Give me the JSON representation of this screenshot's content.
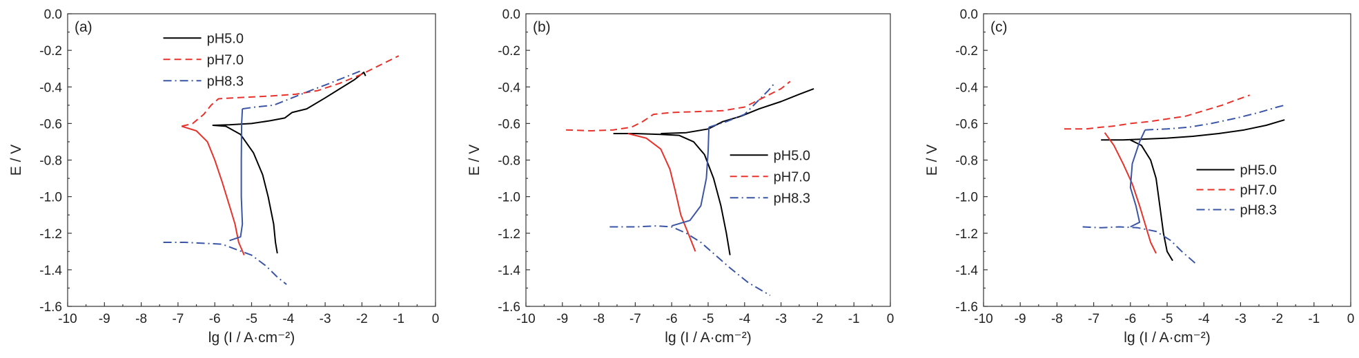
{
  "chart_data": [
    {
      "type": "line",
      "panel_label": "(a)",
      "xlabel": "lg (I / A·cm⁻²)",
      "ylabel": "E / V",
      "xlim": [
        -10,
        0
      ],
      "ylim": [
        -1.6,
        0.0
      ],
      "xticks": [
        "-10",
        "-9",
        "-8",
        "-7",
        "-6",
        "-5",
        "-4",
        "-3",
        "-2",
        "-1",
        "0"
      ],
      "yticks": [
        "0.0",
        "-0.2",
        "-0.4",
        "-0.6",
        "-0.8",
        "-1.0",
        "-1.2",
        "-1.4",
        "-1.6"
      ],
      "legend_position": "top-left",
      "series": [
        {
          "name": "pH5.0",
          "color": "#000000",
          "dash": "solid",
          "points": [
            [
              -4.3,
              -1.31
            ],
            [
              -4.35,
              -1.25
            ],
            [
              -4.4,
              -1.15
            ],
            [
              -4.55,
              -1.0
            ],
            [
              -4.7,
              -0.88
            ],
            [
              -4.95,
              -0.76
            ],
            [
              -5.3,
              -0.66
            ],
            [
              -5.7,
              -0.615
            ],
            [
              -6.05,
              -0.61
            ],
            [
              -5.6,
              -0.607
            ],
            [
              -5.0,
              -0.6
            ],
            [
              -4.5,
              -0.585
            ],
            [
              -4.1,
              -0.57
            ],
            [
              -3.9,
              -0.54
            ],
            [
              -3.5,
              -0.52
            ],
            [
              -3.0,
              -0.46
            ],
            [
              -2.6,
              -0.41
            ],
            [
              -2.2,
              -0.36
            ],
            [
              -1.95,
              -0.32
            ],
            [
              -1.9,
              -0.34
            ]
          ]
        },
        {
          "name": "pH7.0",
          "color": "#e8312a",
          "dash": "dashed",
          "points": [
            [
              -6.9,
              -0.615
            ],
            [
              -6.6,
              -0.6
            ],
            [
              -6.3,
              -0.55
            ],
            [
              -6.1,
              -0.5
            ],
            [
              -5.9,
              -0.465
            ],
            [
              -5.5,
              -0.46
            ],
            [
              -5.0,
              -0.455
            ],
            [
              -4.5,
              -0.45
            ],
            [
              -3.8,
              -0.44
            ],
            [
              -3.2,
              -0.42
            ],
            [
              -2.6,
              -0.38
            ],
            [
              -2.0,
              -0.33
            ],
            [
              -1.5,
              -0.28
            ],
            [
              -1.0,
              -0.23
            ]
          ]
        },
        {
          "name": "",
          "color": "#e8312a",
          "dash": "solid",
          "points": [
            [
              -6.9,
              -0.615
            ],
            [
              -6.5,
              -0.64
            ],
            [
              -6.2,
              -0.7
            ],
            [
              -6.0,
              -0.8
            ],
            [
              -5.8,
              -0.92
            ],
            [
              -5.6,
              -1.05
            ],
            [
              -5.45,
              -1.15
            ],
            [
              -5.35,
              -1.25
            ],
            [
              -5.2,
              -1.32
            ]
          ]
        },
        {
          "name": "pH8.3",
          "color": "#3a54a6",
          "dash": "dashdot",
          "points": [
            [
              -5.25,
              -0.52
            ],
            [
              -4.9,
              -0.51
            ],
            [
              -4.4,
              -0.5
            ],
            [
              -3.9,
              -0.46
            ],
            [
              -3.4,
              -0.42
            ],
            [
              -3.0,
              -0.39
            ],
            [
              -2.5,
              -0.35
            ],
            [
              -2.0,
              -0.31
            ]
          ]
        },
        {
          "name": "",
          "color": "#3a54a6",
          "dash": "solid",
          "points": [
            [
              -5.25,
              -0.52
            ],
            [
              -5.27,
              -0.6
            ],
            [
              -5.28,
              -0.8
            ],
            [
              -5.28,
              -1.0
            ],
            [
              -5.25,
              -1.15
            ],
            [
              -5.3,
              -1.22
            ],
            [
              -5.6,
              -1.24
            ]
          ]
        },
        {
          "name": "",
          "color": "#3a54a6",
          "dash": "dashdot",
          "points": [
            [
              -7.4,
              -1.25
            ],
            [
              -6.8,
              -1.25
            ],
            [
              -6.3,
              -1.255
            ],
            [
              -5.8,
              -1.26
            ],
            [
              -5.4,
              -1.29
            ],
            [
              -5.0,
              -1.32
            ],
            [
              -4.6,
              -1.38
            ],
            [
              -4.3,
              -1.44
            ],
            [
              -4.05,
              -1.48
            ]
          ]
        }
      ]
    },
    {
      "type": "line",
      "panel_label": "(b)",
      "xlabel": "lg (I / A·cm⁻²)",
      "ylabel": "E / V",
      "xlim": [
        -10,
        0
      ],
      "ylim": [
        -1.6,
        0.0
      ],
      "xticks": [
        "-10",
        "-9",
        "-8",
        "-7",
        "-6",
        "-5",
        "-4",
        "-3",
        "-2",
        "-1",
        "0"
      ],
      "yticks": [
        "0.0",
        "-0.2",
        "-0.4",
        "-0.6",
        "-0.8",
        "-1.0",
        "-1.2",
        "-1.4",
        "-1.6"
      ],
      "legend_position": "center-right",
      "series": [
        {
          "name": "pH5.0",
          "color": "#000000",
          "dash": "solid",
          "points": [
            [
              -7.6,
              -0.655
            ],
            [
              -7.0,
              -0.655
            ],
            [
              -6.3,
              -0.66
            ],
            [
              -5.8,
              -0.665
            ],
            [
              -5.4,
              -0.7
            ],
            [
              -5.1,
              -0.77
            ],
            [
              -4.85,
              -0.9
            ],
            [
              -4.65,
              -1.05
            ],
            [
              -4.5,
              -1.2
            ],
            [
              -4.4,
              -1.32
            ]
          ]
        },
        {
          "name": "",
          "color": "#000000",
          "dash": "solid",
          "points": [
            [
              -6.3,
              -0.655
            ],
            [
              -5.6,
              -0.65
            ],
            [
              -5.0,
              -0.63
            ],
            [
              -4.6,
              -0.59
            ],
            [
              -4.1,
              -0.56
            ],
            [
              -3.6,
              -0.52
            ],
            [
              -3.0,
              -0.48
            ],
            [
              -2.5,
              -0.44
            ],
            [
              -2.1,
              -0.41
            ]
          ]
        },
        {
          "name": "pH7.0",
          "color": "#e8312a",
          "dash": "dashed",
          "points": [
            [
              -8.9,
              -0.635
            ],
            [
              -8.2,
              -0.64
            ],
            [
              -7.6,
              -0.635
            ],
            [
              -7.1,
              -0.62
            ],
            [
              -6.8,
              -0.59
            ],
            [
              -6.5,
              -0.55
            ],
            [
              -6.0,
              -0.54
            ],
            [
              -5.3,
              -0.535
            ],
            [
              -4.6,
              -0.53
            ],
            [
              -4.0,
              -0.51
            ],
            [
              -3.5,
              -0.46
            ],
            [
              -3.0,
              -0.41
            ],
            [
              -2.75,
              -0.37
            ]
          ]
        },
        {
          "name": "",
          "color": "#e8312a",
          "dash": "solid",
          "points": [
            [
              -7.2,
              -0.655
            ],
            [
              -6.7,
              -0.68
            ],
            [
              -6.3,
              -0.74
            ],
            [
              -6.05,
              -0.85
            ],
            [
              -5.9,
              -0.97
            ],
            [
              -5.75,
              -1.1
            ],
            [
              -5.55,
              -1.2
            ],
            [
              -5.35,
              -1.3
            ]
          ]
        },
        {
          "name": "pH8.3",
          "color": "#3a54a6",
          "dash": "dashdot",
          "points": [
            [
              -7.7,
              -1.165
            ],
            [
              -7.0,
              -1.165
            ],
            [
              -6.4,
              -1.16
            ],
            [
              -6.0,
              -1.165
            ],
            [
              -5.6,
              -1.2
            ],
            [
              -5.2,
              -1.25
            ],
            [
              -4.8,
              -1.32
            ],
            [
              -4.4,
              -1.39
            ],
            [
              -3.9,
              -1.47
            ],
            [
              -3.3,
              -1.54
            ]
          ]
        },
        {
          "name": "",
          "color": "#3a54a6",
          "dash": "solid",
          "points": [
            [
              -6.0,
              -1.16
            ],
            [
              -5.5,
              -1.13
            ],
            [
              -5.2,
              -1.05
            ],
            [
              -5.05,
              -0.9
            ],
            [
              -5.0,
              -0.75
            ],
            [
              -4.98,
              -0.62
            ]
          ]
        },
        {
          "name": "",
          "color": "#3a54a6",
          "dash": "dashdot",
          "points": [
            [
              -4.98,
              -0.62
            ],
            [
              -4.5,
              -0.59
            ],
            [
              -4.0,
              -0.55
            ],
            [
              -3.6,
              -0.47
            ],
            [
              -3.35,
              -0.42
            ],
            [
              -3.2,
              -0.385
            ]
          ]
        }
      ]
    },
    {
      "type": "line",
      "panel_label": "(c)",
      "xlabel": "lg (I / A·cm⁻²)",
      "ylabel": "E / V",
      "xlim": [
        -10,
        0
      ],
      "ylim": [
        -1.6,
        0.0
      ],
      "xticks": [
        "-10",
        "-9",
        "-8",
        "-7",
        "-6",
        "-5",
        "-4",
        "-3",
        "-2",
        "-1",
        "0"
      ],
      "yticks": [
        "0.0",
        "-0.2",
        "-0.4",
        "-0.6",
        "-0.8",
        "-1.0",
        "-1.2",
        "-1.4",
        "-1.6"
      ],
      "legend_position": "center-right",
      "series": [
        {
          "name": "pH5.0",
          "color": "#000000",
          "dash": "solid",
          "points": [
            [
              -6.8,
              -0.69
            ],
            [
              -6.2,
              -0.69
            ],
            [
              -5.6,
              -0.685
            ],
            [
              -5.0,
              -0.68
            ],
            [
              -4.3,
              -0.67
            ],
            [
              -3.6,
              -0.655
            ],
            [
              -2.9,
              -0.635
            ],
            [
              -2.3,
              -0.61
            ],
            [
              -1.8,
              -0.58
            ]
          ]
        },
        {
          "name": "",
          "color": "#000000",
          "dash": "solid",
          "points": [
            [
              -6.0,
              -0.69
            ],
            [
              -5.7,
              -0.72
            ],
            [
              -5.45,
              -0.8
            ],
            [
              -5.3,
              -0.9
            ],
            [
              -5.2,
              -1.05
            ],
            [
              -5.1,
              -1.2
            ],
            [
              -5.0,
              -1.3
            ],
            [
              -4.85,
              -1.35
            ]
          ]
        },
        {
          "name": "pH7.0",
          "color": "#e8312a",
          "dash": "dashed",
          "points": [
            [
              -7.8,
              -0.63
            ],
            [
              -7.2,
              -0.63
            ],
            [
              -6.8,
              -0.62
            ],
            [
              -6.5,
              -0.615
            ],
            [
              -6.0,
              -0.6
            ],
            [
              -5.5,
              -0.59
            ],
            [
              -5.0,
              -0.575
            ],
            [
              -4.5,
              -0.56
            ],
            [
              -4.0,
              -0.53
            ],
            [
              -3.5,
              -0.5
            ],
            [
              -3.1,
              -0.47
            ],
            [
              -2.75,
              -0.445
            ]
          ]
        },
        {
          "name": "",
          "color": "#e8312a",
          "dash": "solid",
          "points": [
            [
              -6.7,
              -0.65
            ],
            [
              -6.45,
              -0.72
            ],
            [
              -6.2,
              -0.82
            ],
            [
              -5.95,
              -0.93
            ],
            [
              -5.75,
              -1.05
            ],
            [
              -5.6,
              -1.15
            ],
            [
              -5.45,
              -1.25
            ],
            [
              -5.3,
              -1.31
            ]
          ]
        },
        {
          "name": "pH8.3",
          "color": "#3a54a6",
          "dash": "dashdot",
          "points": [
            [
              -7.3,
              -1.165
            ],
            [
              -6.8,
              -1.17
            ],
            [
              -6.3,
              -1.165
            ],
            [
              -5.8,
              -1.17
            ],
            [
              -5.3,
              -1.19
            ],
            [
              -4.9,
              -1.24
            ],
            [
              -4.6,
              -1.3
            ],
            [
              -4.2,
              -1.37
            ]
          ]
        },
        {
          "name": "",
          "color": "#3a54a6",
          "dash": "solid",
          "points": [
            [
              -6.0,
              -1.165
            ],
            [
              -5.75,
              -1.14
            ],
            [
              -5.85,
              -1.05
            ],
            [
              -6.0,
              -0.95
            ],
            [
              -5.95,
              -0.82
            ],
            [
              -5.75,
              -0.7
            ],
            [
              -5.6,
              -0.635
            ]
          ]
        },
        {
          "name": "",
          "color": "#3a54a6",
          "dash": "dashdot",
          "points": [
            [
              -5.6,
              -0.635
            ],
            [
              -5.0,
              -0.63
            ],
            [
              -4.4,
              -0.62
            ],
            [
              -3.8,
              -0.6
            ],
            [
              -3.1,
              -0.57
            ],
            [
              -2.5,
              -0.54
            ],
            [
              -2.0,
              -0.51
            ],
            [
              -1.8,
              -0.5
            ]
          ]
        }
      ]
    }
  ]
}
